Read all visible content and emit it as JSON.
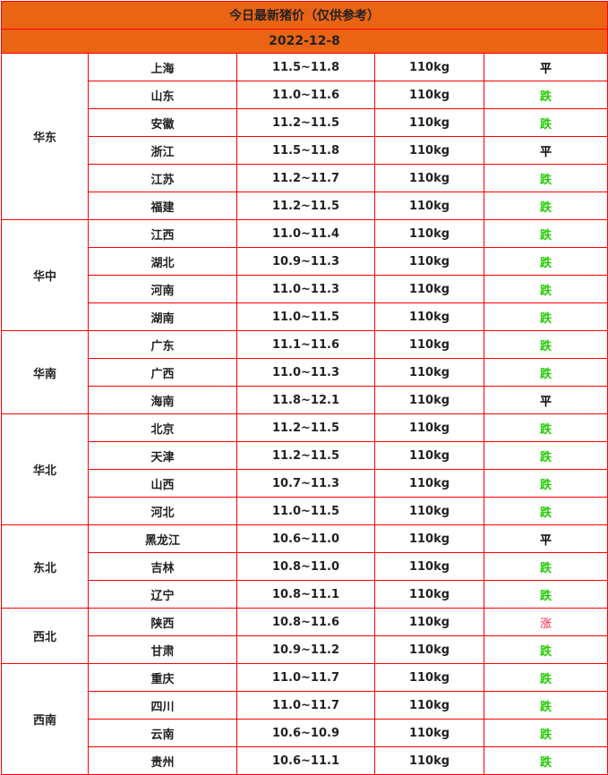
{
  "title": "今日最新猪价（仅供参考）",
  "date": "2022-12-8",
  "colors": {
    "header_bg": "#ea6414",
    "border": "#ff0000",
    "down": "#22cc00",
    "up": "#ff2244",
    "flat": "#000000"
  },
  "regions": [
    {
      "name": "华东",
      "rows": [
        {
          "province": "上海",
          "price": "11.5~11.8",
          "weight": "110kg",
          "trend": "平"
        },
        {
          "province": "山东",
          "price": "11.0~11.6",
          "weight": "110kg",
          "trend": "跌"
        },
        {
          "province": "安徽",
          "price": "11.2~11.5",
          "weight": "110kg",
          "trend": "跌"
        },
        {
          "province": "浙江",
          "price": "11.5~11.8",
          "weight": "110kg",
          "trend": "平"
        },
        {
          "province": "江苏",
          "price": "11.2~11.7",
          "weight": "110kg",
          "trend": "跌"
        },
        {
          "province": "福建",
          "price": "11.2~11.5",
          "weight": "110kg",
          "trend": "跌"
        }
      ]
    },
    {
      "name": "华中",
      "rows": [
        {
          "province": "江西",
          "price": "11.0~11.4",
          "weight": "110kg",
          "trend": "跌"
        },
        {
          "province": "湖北",
          "price": "10.9~11.3",
          "weight": "110kg",
          "trend": "跌"
        },
        {
          "province": "河南",
          "price": "11.0~11.3",
          "weight": "110kg",
          "trend": "跌"
        },
        {
          "province": "湖南",
          "price": "11.0~11.5",
          "weight": "110kg",
          "trend": "跌"
        }
      ]
    },
    {
      "name": "华南",
      "rows": [
        {
          "province": "广东",
          "price": "11.1~11.6",
          "weight": "110kg",
          "trend": "跌"
        },
        {
          "province": "广西",
          "price": "11.0~11.3",
          "weight": "110kg",
          "trend": "跌"
        },
        {
          "province": "海南",
          "price": "11.8~12.1",
          "weight": "110kg",
          "trend": "平"
        }
      ]
    },
    {
      "name": "华北",
      "rows": [
        {
          "province": "北京",
          "price": "11.2~11.5",
          "weight": "110kg",
          "trend": "跌"
        },
        {
          "province": "天津",
          "price": "11.2~11.5",
          "weight": "110kg",
          "trend": "跌"
        },
        {
          "province": "山西",
          "price": "10.7~11.3",
          "weight": "110kg",
          "trend": "跌"
        },
        {
          "province": "河北",
          "price": "11.0~11.5",
          "weight": "110kg",
          "trend": "跌"
        }
      ]
    },
    {
      "name": "东北",
      "rows": [
        {
          "province": "黑龙江",
          "price": "10.6~11.0",
          "weight": "110kg",
          "trend": "平"
        },
        {
          "province": "吉林",
          "price": "10.8~11.0",
          "weight": "110kg",
          "trend": "跌"
        },
        {
          "province": "辽宁",
          "price": "10.8~11.1",
          "weight": "110kg",
          "trend": "跌"
        }
      ]
    },
    {
      "name": "西北",
      "rows": [
        {
          "province": "陕西",
          "price": "10.8~11.6",
          "weight": "110kg",
          "trend": "涨"
        },
        {
          "province": "甘肃",
          "price": "10.9~11.2",
          "weight": "110kg",
          "trend": "跌"
        }
      ]
    },
    {
      "name": "西南",
      "rows": [
        {
          "province": "重庆",
          "price": "11.0~11.7",
          "weight": "110kg",
          "trend": "跌"
        },
        {
          "province": "四川",
          "price": "11.0~11.7",
          "weight": "110kg",
          "trend": "跌"
        },
        {
          "province": "云南",
          "price": "10.6~10.9",
          "weight": "110kg",
          "trend": "跌"
        },
        {
          "province": "贵州",
          "price": "10.6~11.1",
          "weight": "110kg",
          "trend": "跌"
        }
      ]
    }
  ]
}
